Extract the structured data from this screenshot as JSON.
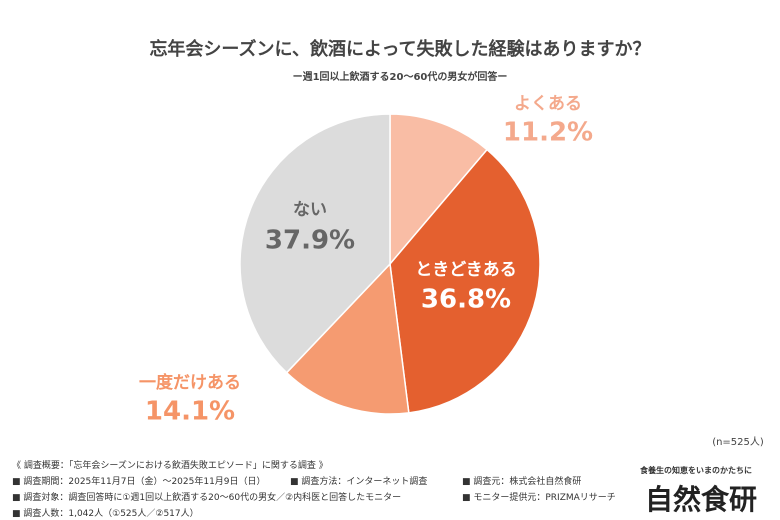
{
  "chart_data": {
    "type": "pie",
    "title": "忘年会シーズンに、飲酒によって失敗した経験はありますか？",
    "subtitle": "ー週1回以上飲酒する20〜60代の男女が回答ー",
    "categories": [
      "よくある",
      "ときどきある",
      "一度だけある",
      "ない"
    ],
    "values": [
      11.2,
      36.8,
      14.1,
      37.9
    ],
    "value_labels": [
      "11.2%",
      "36.8%",
      "14.1%",
      "37.9%"
    ],
    "colors": [
      "#f9bda5",
      "#e4602f",
      "#f59b71",
      "#dcdcdc"
    ],
    "note": "(n=525人)"
  },
  "footer": {
    "heading": "《 調査概要：「忘年会シーズンにおける飲酒失敗エピソード」に関する調査 》",
    "rows": [
      [
        "■ 調査期間：2025年11月7日（金）〜2025年11月9日（日）",
        "■ 調査方法：インターネット調査",
        "■ 調査元：株式会社自然食研"
      ],
      [
        "■ 調査対象：調査回答時に①週1回以上飲酒する20〜60代の男女／②内科医と回答したモニター",
        "■ モニター提供元：PRIZMAリサーチ"
      ],
      [
        "■ 調査人数：1,042人（①525人／②517人）"
      ]
    ]
  },
  "logo": {
    "tagline": "食養生の知恵をいまのかたちに",
    "name": "自然食研"
  }
}
